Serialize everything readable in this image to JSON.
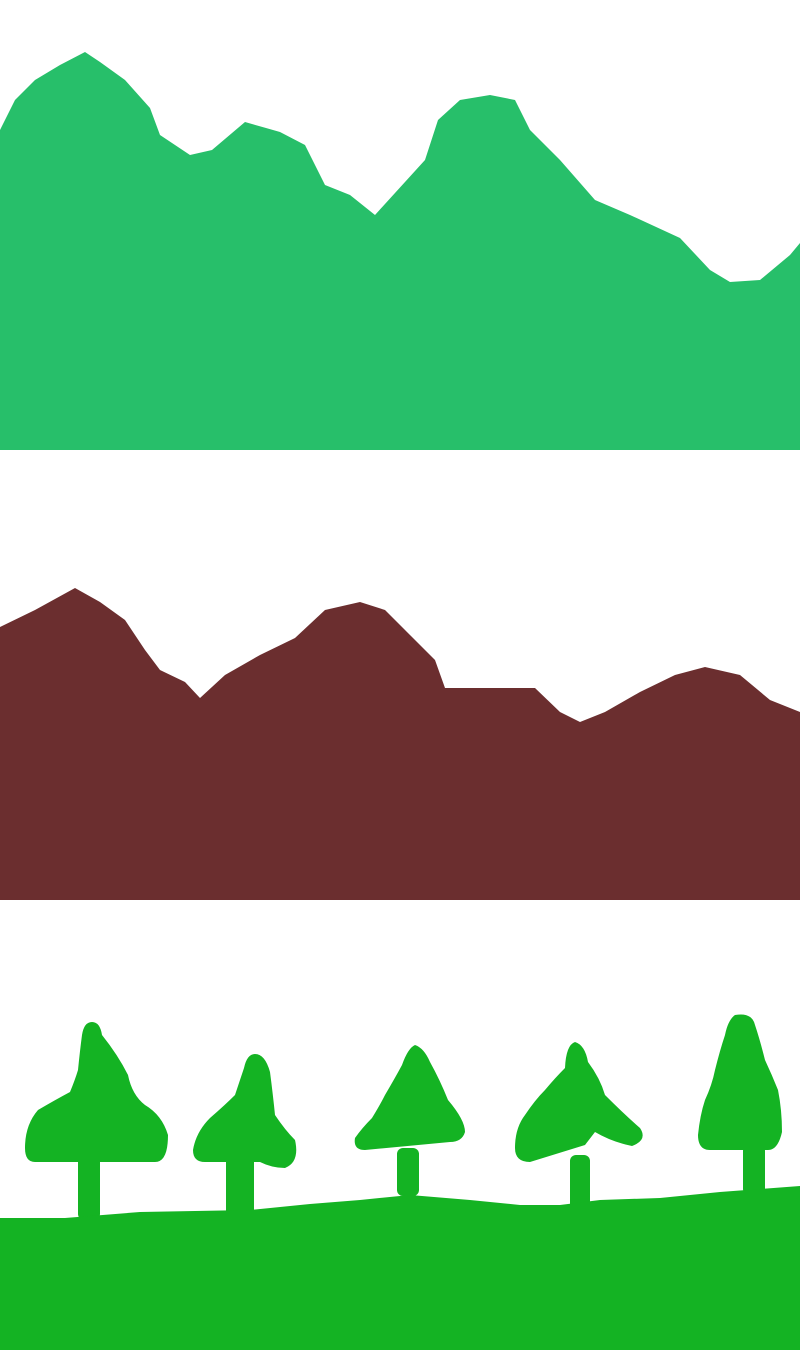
{
  "scene_sprites": {
    "sprite_count": 3,
    "colors": {
      "background": "#ffffff",
      "hills": "#27bf6a",
      "mountains": "#6b2e2f",
      "forest_trees": "#14b323",
      "forest_ground": "#14b323"
    },
    "layers": [
      {
        "name": "green-hills-layer",
        "color": "#27bf6a"
      },
      {
        "name": "brown-mountains-layer",
        "color": "#6b2e2f"
      },
      {
        "name": "forest-layer",
        "color": "#14b323",
        "tree_count": 5
      }
    ]
  }
}
